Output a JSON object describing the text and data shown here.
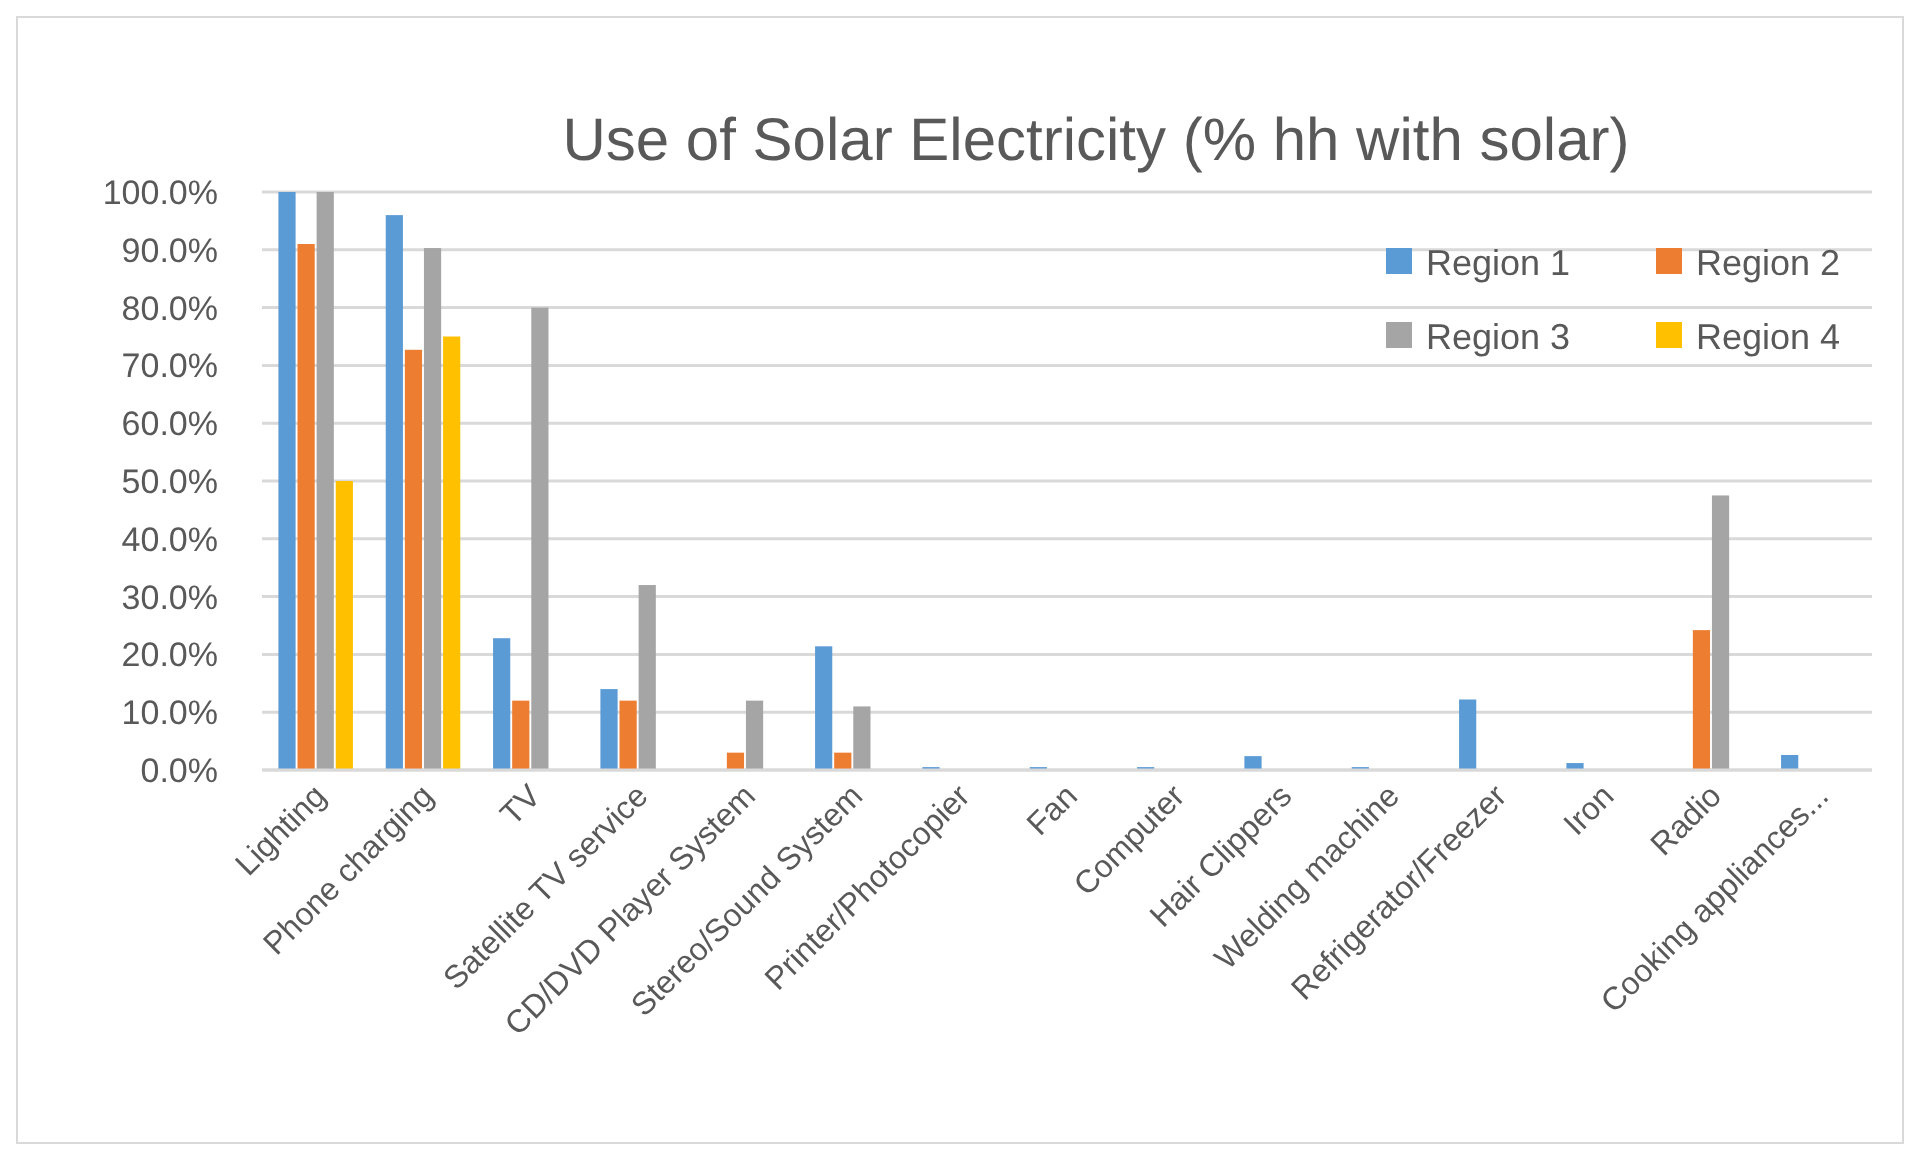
{
  "chart_data": {
    "type": "bar",
    "title": "Use of Solar Electricity (% hh with solar)",
    "categories": [
      "Lighting",
      "Phone charging",
      "TV",
      "Satellite TV service",
      "CD/DVD Player System",
      "Stereo/Sound System",
      "Printer/Photocopier",
      "Fan",
      "Computer",
      "Hair Clippers",
      "Welding machine",
      "Refrigerator/Freezer",
      "Iron",
      "Radio",
      "Cooking appliances..."
    ],
    "series": [
      {
        "name": "Region 1",
        "color": "#5b9bd5",
        "values": [
          100,
          96,
          22.8,
          14,
          null,
          21.4,
          0.5,
          0.5,
          0.5,
          2.4,
          0.5,
          12.2,
          1.2,
          null,
          2.6
        ]
      },
      {
        "name": "Region 2",
        "color": "#ed7d31",
        "values": [
          91,
          72.7,
          12,
          12,
          3,
          3,
          null,
          null,
          null,
          null,
          null,
          null,
          null,
          24.2,
          null
        ]
      },
      {
        "name": "Region 3",
        "color": "#a5a5a5",
        "values": [
          100,
          90.3,
          80,
          32,
          12,
          11,
          null,
          null,
          null,
          null,
          null,
          null,
          null,
          47.5,
          null
        ]
      },
      {
        "name": "Region 4",
        "color": "#ffc000",
        "values": [
          50,
          75,
          null,
          null,
          null,
          null,
          null,
          null,
          null,
          null,
          null,
          null,
          null,
          null,
          null
        ]
      }
    ],
    "ylim": [
      0,
      100
    ],
    "yticks": [
      {
        "value": 0,
        "label": "0.0%"
      },
      {
        "value": 10,
        "label": "10.0%"
      },
      {
        "value": 20,
        "label": "20.0%"
      },
      {
        "value": 30,
        "label": "30.0%"
      },
      {
        "value": 40,
        "label": "40.0%"
      },
      {
        "value": 50,
        "label": "50.0%"
      },
      {
        "value": 60,
        "label": "60.0%"
      },
      {
        "value": 70,
        "label": "70.0%"
      },
      {
        "value": 80,
        "label": "80.0%"
      },
      {
        "value": 90,
        "label": "90.0%"
      },
      {
        "value": 100,
        "label": "100.0%"
      }
    ],
    "grid": "y",
    "legend": "top right"
  }
}
